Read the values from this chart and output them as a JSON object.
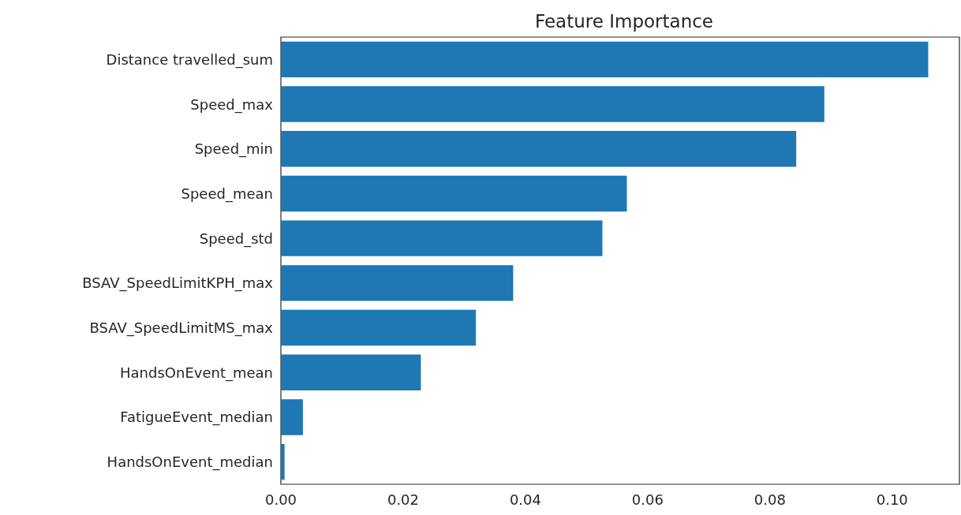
{
  "chart_data": {
    "type": "bar",
    "orientation": "horizontal",
    "title": "Feature Importance",
    "categories": [
      "Distance travelled_sum",
      "Speed_max",
      "Speed_min",
      "Speed_mean",
      "Speed_std",
      "BSAV_SpeedLimitKPH_max",
      "BSAV_SpeedLimitMS_max",
      "HandsOnEvent_mean",
      "FatigueEvent_median",
      "HandsOnEvent_median"
    ],
    "values": [
      0.1059,
      0.0889,
      0.0843,
      0.0566,
      0.0526,
      0.038,
      0.0319,
      0.0229,
      0.0036,
      0.0006
    ],
    "color": "#1f77b4",
    "xlim": [
      0,
      0.111
    ],
    "xticks": [
      {
        "value": 0,
        "label": "0.00"
      },
      {
        "value": 0.02,
        "label": "0.02"
      },
      {
        "value": 0.04,
        "label": "0.04"
      },
      {
        "value": 0.06,
        "label": "0.06"
      },
      {
        "value": 0.08,
        "label": "0.08"
      },
      {
        "value": 0.1,
        "label": "0.10"
      }
    ],
    "grid": false
  }
}
